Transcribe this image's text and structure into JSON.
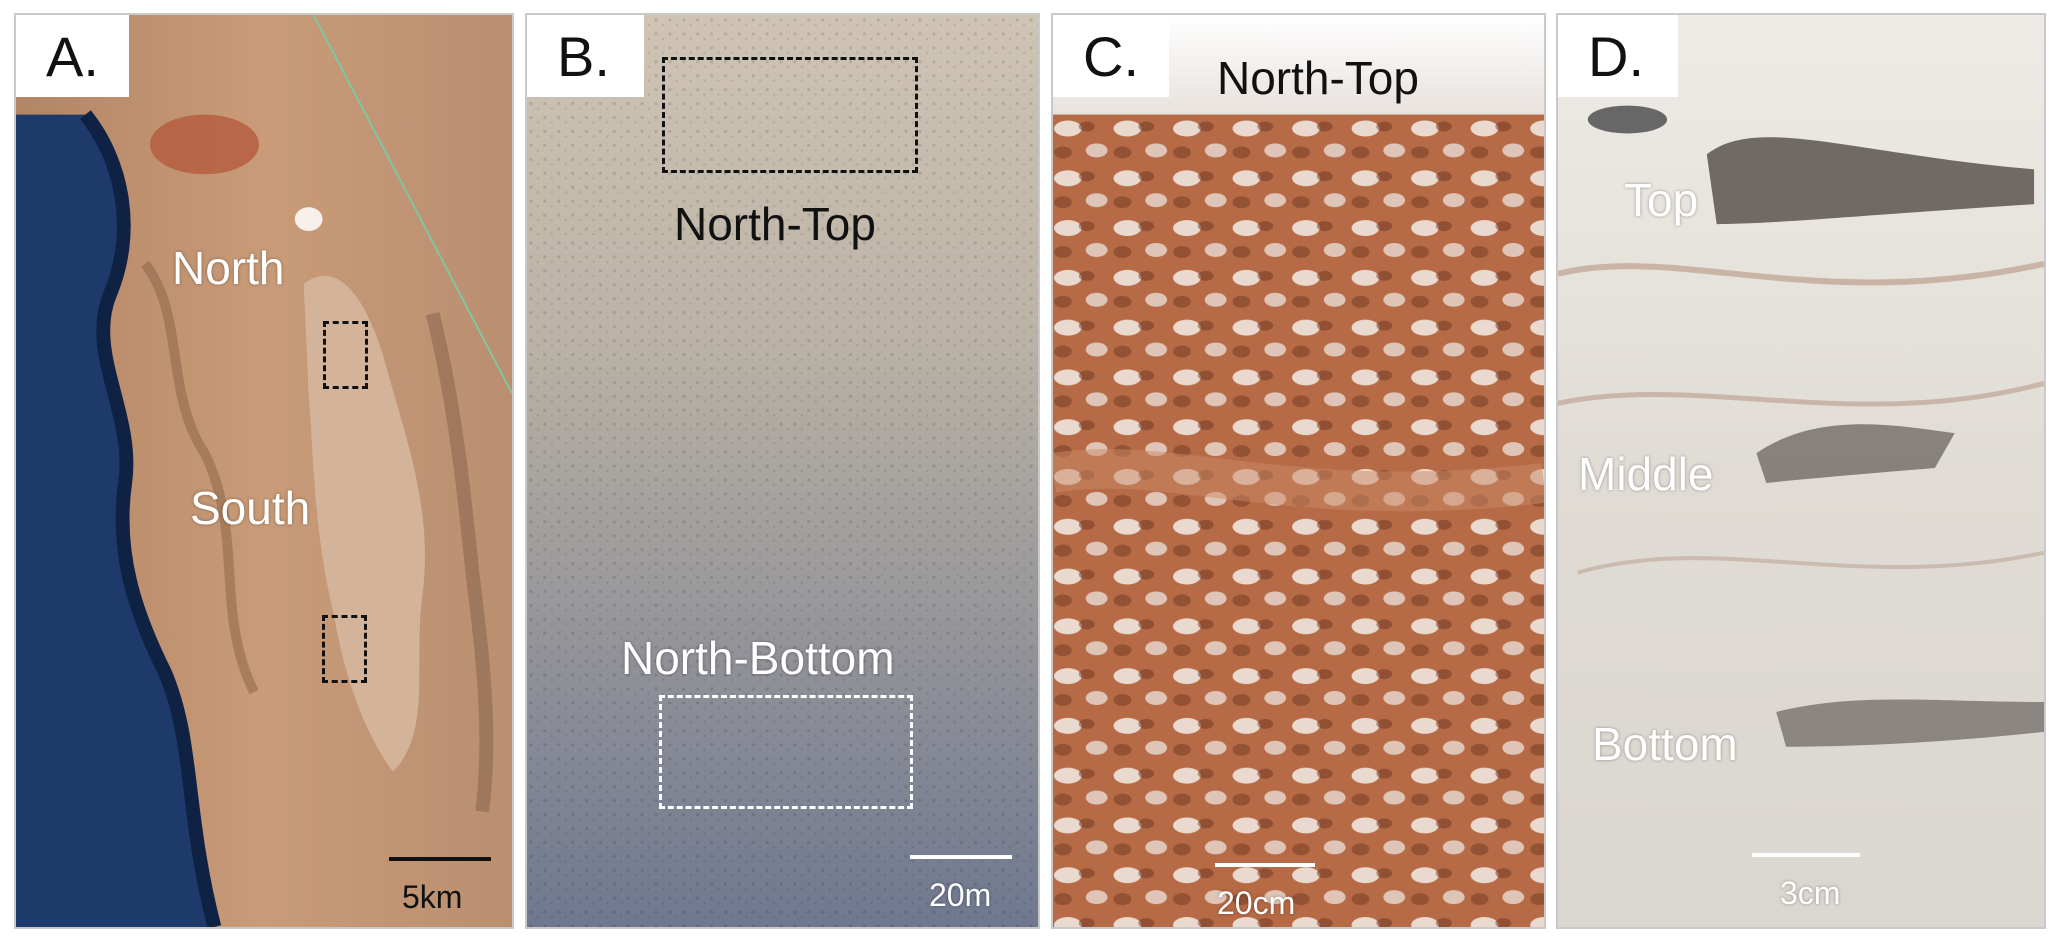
{
  "colors": {
    "ocean": "#1d3a6b",
    "desert": "#c99b78",
    "salt_flat": "#d4b49c",
    "aerial_top": "#cfc4b4",
    "aerial_bottom": "#6f7890",
    "crust_orange": "#b66a45",
    "crust_white": "#f2ece8",
    "core_white": "#e6e2dc",
    "core_brown": "#9e6d52"
  },
  "panels": {
    "a": {
      "letter": "A.",
      "labels": {
        "north": "North",
        "south": "South"
      },
      "scale": "5km"
    },
    "b": {
      "letter": "B.",
      "labels": {
        "north_top": "North-Top",
        "north_bottom": "North-Bottom"
      },
      "scale": "20m"
    },
    "c": {
      "letter": "C.",
      "title": "North-Top",
      "scale": "20cm"
    },
    "d": {
      "letter": "D.",
      "labels": {
        "top": "Top",
        "middle": "Middle",
        "bottom": "Bottom"
      },
      "scale": "3cm"
    }
  }
}
